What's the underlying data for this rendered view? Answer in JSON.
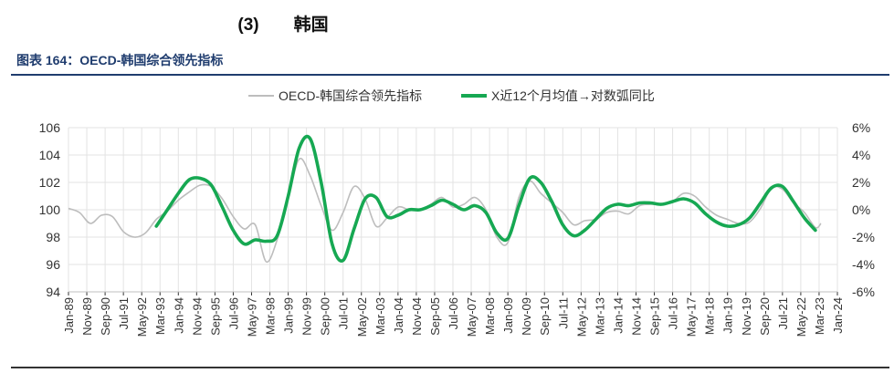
{
  "heading": {
    "number": "(3)",
    "text": "韩国"
  },
  "figure_title": "图表 164：OECD-韩国综合领先指标",
  "colors": {
    "cli": "#bdbdbd",
    "yoy": "#16a852",
    "axis": "#333333",
    "grid": "#e3e3e3",
    "title": "#1f3c6e"
  },
  "chart_data": {
    "type": "line",
    "legend_position": "top",
    "grid": true,
    "x_tick_labels": [
      "Jan-89",
      "Nov-89",
      "Sep-90",
      "Jul-91",
      "May-92",
      "Mar-93",
      "Jan-94",
      "Nov-94",
      "Sep-95",
      "Jul-96",
      "May-97",
      "Mar-98",
      "Jan-99",
      "Nov-99",
      "Sep-00",
      "Jul-01",
      "May-02",
      "Mar-03",
      "Jan-04",
      "Nov-04",
      "Sep-05",
      "Jul-06",
      "May-07",
      "Mar-08",
      "Jan-09",
      "Nov-09",
      "Sep-10",
      "Jul-11",
      "May-12",
      "Mar-13",
      "Jan-14",
      "Nov-14",
      "Sep-15",
      "Jul-16",
      "May-17",
      "Mar-18",
      "Jan-19",
      "Nov-19",
      "Sep-20",
      "Jul-21",
      "May-22",
      "Mar-23",
      "Jan-24"
    ],
    "x_range": [
      1989.0,
      2024.0
    ],
    "left_axis": {
      "min": 94,
      "max": 106,
      "ticks": [
        "94",
        "96",
        "98",
        "100",
        "102",
        "104",
        "106"
      ]
    },
    "right_axis": {
      "min": -6,
      "max": 6,
      "ticks": [
        "-6%",
        "-4%",
        "-2%",
        "0%",
        "2%",
        "4%",
        "6%"
      ]
    },
    "series": [
      {
        "name": "OECD-韩国综合领先指标",
        "axis": "left",
        "points": [
          [
            1989.0,
            100.1
          ],
          [
            1989.5,
            99.8
          ],
          [
            1990.0,
            99.0
          ],
          [
            1990.5,
            99.6
          ],
          [
            1991.0,
            99.5
          ],
          [
            1991.5,
            98.4
          ],
          [
            1992.0,
            98.0
          ],
          [
            1992.5,
            98.3
          ],
          [
            1993.0,
            99.3
          ],
          [
            1993.5,
            99.9
          ],
          [
            1994.0,
            100.7
          ],
          [
            1994.5,
            101.3
          ],
          [
            1995.0,
            101.8
          ],
          [
            1995.5,
            101.7
          ],
          [
            1996.0,
            100.8
          ],
          [
            1996.5,
            99.5
          ],
          [
            1997.0,
            98.6
          ],
          [
            1997.5,
            98.9
          ],
          [
            1998.0,
            96.2
          ],
          [
            1998.5,
            97.8
          ],
          [
            1999.0,
            100.8
          ],
          [
            1999.5,
            103.7
          ],
          [
            2000.0,
            102.5
          ],
          [
            2000.5,
            100.3
          ],
          [
            2001.0,
            98.5
          ],
          [
            2001.5,
            99.8
          ],
          [
            2002.0,
            101.7
          ],
          [
            2002.5,
            100.8
          ],
          [
            2003.0,
            98.8
          ],
          [
            2003.5,
            99.4
          ],
          [
            2004.0,
            100.2
          ],
          [
            2004.5,
            100.0
          ],
          [
            2005.0,
            100.0
          ],
          [
            2005.5,
            100.4
          ],
          [
            2006.0,
            100.9
          ],
          [
            2006.5,
            100.2
          ],
          [
            2007.0,
            100.4
          ],
          [
            2007.5,
            100.9
          ],
          [
            2008.0,
            100.0
          ],
          [
            2008.5,
            98.0
          ],
          [
            2009.0,
            97.6
          ],
          [
            2009.5,
            100.9
          ],
          [
            2010.0,
            102.1
          ],
          [
            2010.5,
            101.2
          ],
          [
            2011.0,
            100.5
          ],
          [
            2011.5,
            99.8
          ],
          [
            2012.0,
            98.9
          ],
          [
            2012.5,
            99.2
          ],
          [
            2013.0,
            99.3
          ],
          [
            2013.5,
            99.8
          ],
          [
            2014.0,
            99.9
          ],
          [
            2014.5,
            99.7
          ],
          [
            2015.0,
            100.3
          ],
          [
            2015.5,
            100.4
          ],
          [
            2016.0,
            100.4
          ],
          [
            2016.5,
            100.6
          ],
          [
            2017.0,
            101.2
          ],
          [
            2017.5,
            101.0
          ],
          [
            2018.0,
            100.2
          ],
          [
            2018.5,
            99.6
          ],
          [
            2019.0,
            99.3
          ],
          [
            2019.5,
            99.0
          ],
          [
            2020.0,
            99.1
          ],
          [
            2020.5,
            100.1
          ],
          [
            2021.0,
            101.6
          ],
          [
            2021.5,
            101.5
          ],
          [
            2022.0,
            100.5
          ],
          [
            2022.5,
            99.8
          ],
          [
            2023.0,
            98.7
          ],
          [
            2023.25,
            99.0
          ]
        ]
      },
      {
        "name": "X近12个月均值→对数弧同比",
        "axis": "right",
        "points": [
          [
            1993.0,
            -1.2
          ],
          [
            1993.5,
            0.0
          ],
          [
            1994.0,
            1.2
          ],
          [
            1994.5,
            2.2
          ],
          [
            1995.0,
            2.3
          ],
          [
            1995.5,
            1.8
          ],
          [
            1996.0,
            0.2
          ],
          [
            1996.5,
            -1.5
          ],
          [
            1997.0,
            -2.5
          ],
          [
            1997.5,
            -2.2
          ],
          [
            1998.0,
            -2.3
          ],
          [
            1998.5,
            -1.9
          ],
          [
            1999.0,
            1.0
          ],
          [
            1999.5,
            4.5
          ],
          [
            2000.0,
            5.2
          ],
          [
            2000.5,
            2.0
          ],
          [
            2001.0,
            -2.5
          ],
          [
            2001.5,
            -3.7
          ],
          [
            2002.0,
            -1.4
          ],
          [
            2002.5,
            0.8
          ],
          [
            2003.0,
            0.9
          ],
          [
            2003.5,
            -0.5
          ],
          [
            2004.0,
            -0.4
          ],
          [
            2004.5,
            0.0
          ],
          [
            2005.0,
            0.0
          ],
          [
            2005.5,
            0.3
          ],
          [
            2006.0,
            0.7
          ],
          [
            2006.5,
            0.4
          ],
          [
            2007.0,
            0.0
          ],
          [
            2007.5,
            0.3
          ],
          [
            2008.0,
            -0.2
          ],
          [
            2008.5,
            -1.7
          ],
          [
            2009.0,
            -2.1
          ],
          [
            2009.5,
            0.3
          ],
          [
            2010.0,
            2.3
          ],
          [
            2010.5,
            2.0
          ],
          [
            2011.0,
            0.6
          ],
          [
            2011.5,
            -1.1
          ],
          [
            2012.0,
            -1.9
          ],
          [
            2012.5,
            -1.5
          ],
          [
            2013.0,
            -0.7
          ],
          [
            2013.5,
            0.1
          ],
          [
            2014.0,
            0.4
          ],
          [
            2014.5,
            0.3
          ],
          [
            2015.0,
            0.5
          ],
          [
            2015.5,
            0.5
          ],
          [
            2016.0,
            0.4
          ],
          [
            2016.5,
            0.6
          ],
          [
            2017.0,
            0.8
          ],
          [
            2017.5,
            0.5
          ],
          [
            2018.0,
            -0.3
          ],
          [
            2018.5,
            -0.9
          ],
          [
            2019.0,
            -1.2
          ],
          [
            2019.5,
            -1.1
          ],
          [
            2020.0,
            -0.6
          ],
          [
            2020.5,
            0.5
          ],
          [
            2021.0,
            1.6
          ],
          [
            2021.5,
            1.7
          ],
          [
            2022.0,
            0.6
          ],
          [
            2022.5,
            -0.6
          ],
          [
            2023.0,
            -1.5
          ]
        ]
      }
    ]
  }
}
